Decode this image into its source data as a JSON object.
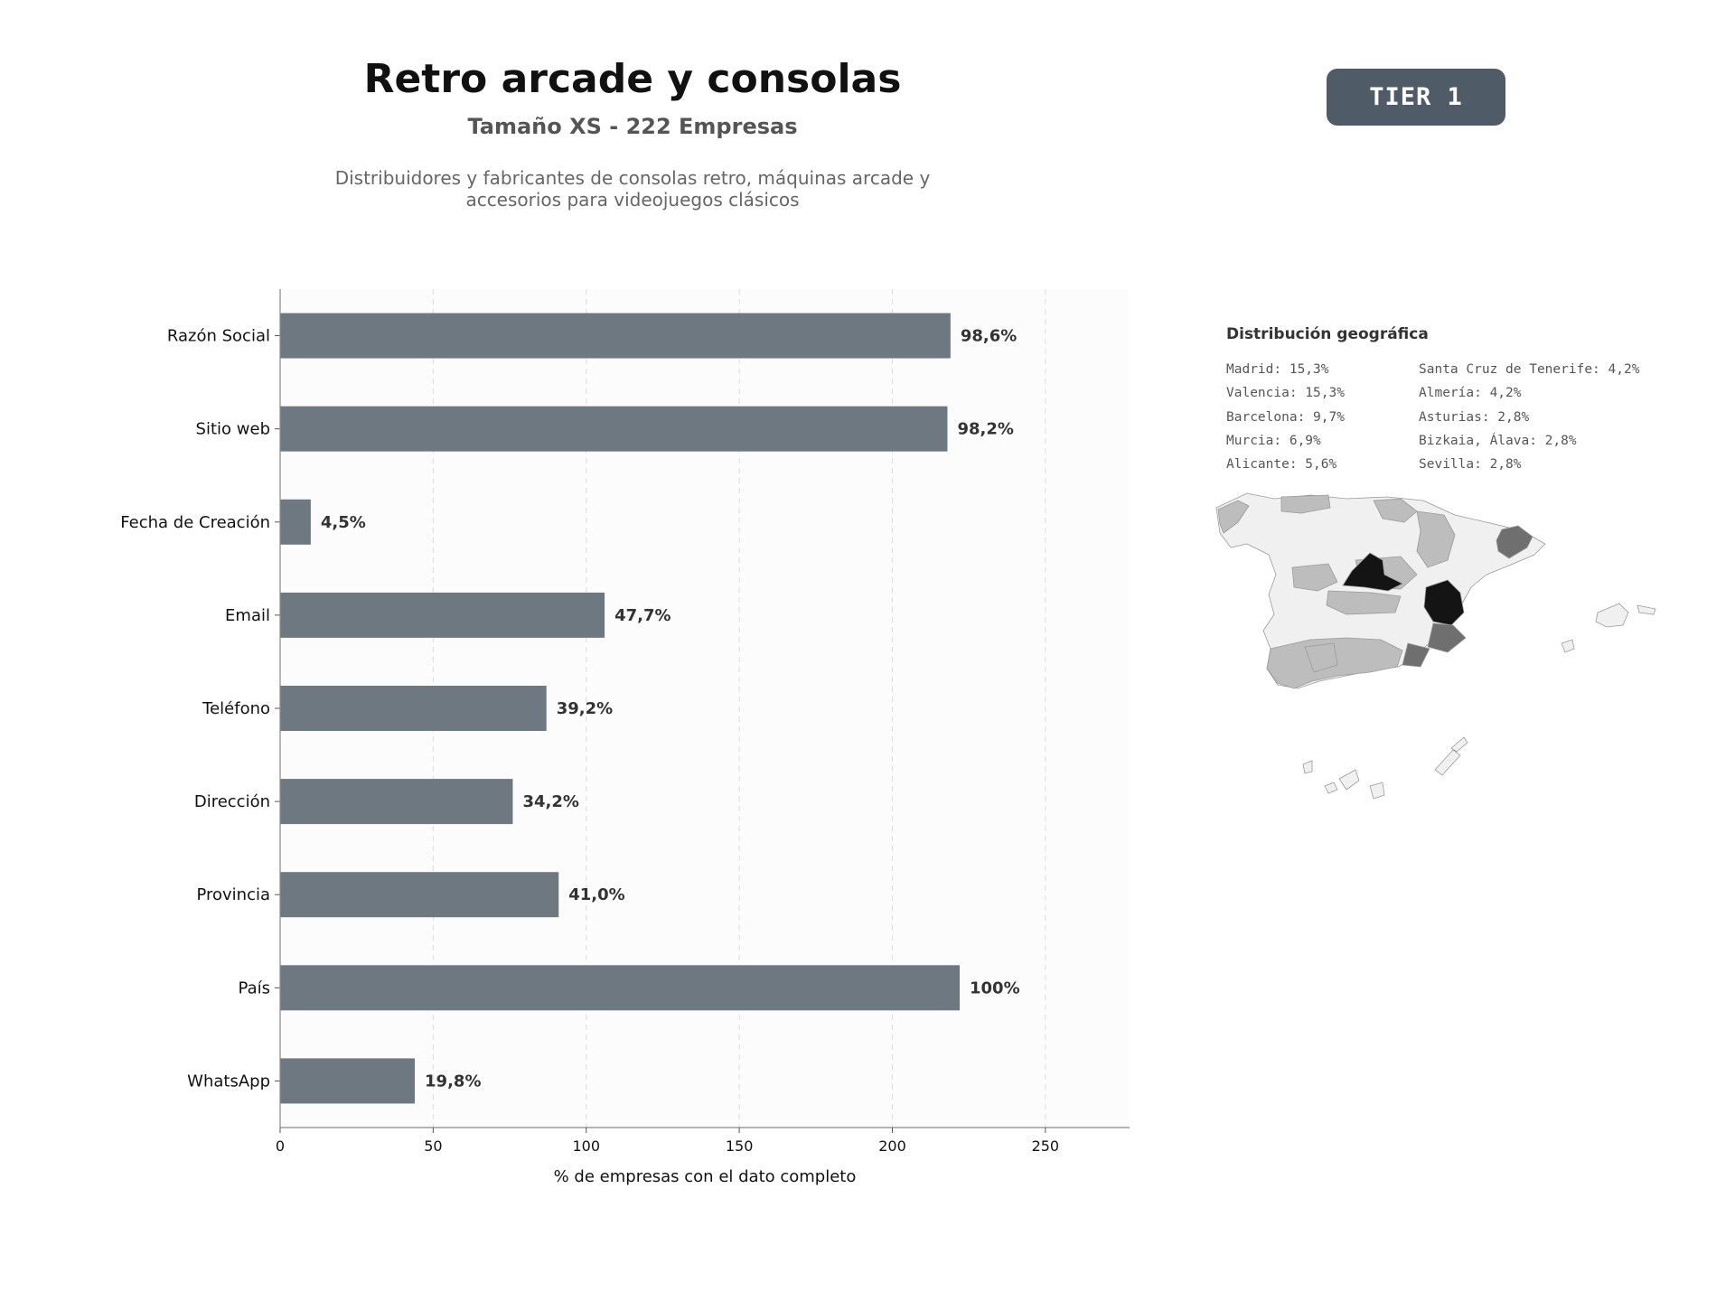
{
  "header": {
    "title": "Retro arcade y consolas",
    "subtitle": "Tamaño XS - 222 Empresas",
    "description": "Distribuidores y fabricantes de consolas retro, máquinas arcade y accesorios para videojuegos clásicos",
    "tier_badge": "TIER 1"
  },
  "chart_data": {
    "type": "bar",
    "orientation": "horizontal",
    "categories": [
      "Razón Social",
      "Sitio web",
      "Fecha de Creación",
      "Email",
      "Teléfono",
      "Dirección",
      "Provincia",
      "País",
      "WhatsApp"
    ],
    "values": [
      219,
      218,
      10,
      106,
      87,
      76,
      91,
      222,
      44
    ],
    "data_labels": [
      "98,6%",
      "98,2%",
      "4,5%",
      "47,7%",
      "39,2%",
      "34,2%",
      "41,0%",
      "100%",
      "19,8%"
    ],
    "xlabel": "% de empresas con el dato completo",
    "ylabel": "",
    "xlim": [
      0,
      277.5
    ],
    "xticks": [
      0,
      50,
      100,
      150,
      200,
      250
    ],
    "grid": "x-dashed",
    "bar_color": "#6e7881"
  },
  "geo": {
    "title": "Distribución geográfica",
    "col1": [
      "Madrid: 15,3%",
      "Valencia: 15,3%",
      "Barcelona: 9,7%",
      "Murcia: 6,9%",
      "Alicante: 5,6%"
    ],
    "col2": [
      "Santa Cruz de Tenerife: 4,2%",
      "Almería: 4,2%",
      "Asturias: 2,8%",
      "Bizkaia, Álava: 2,8%",
      "Sevilla: 2,8%"
    ],
    "map_colors": {
      "high": "#141414",
      "mid": "#6f6f6f",
      "low": "#bdbdbd",
      "none": "#f0f0f0"
    }
  }
}
